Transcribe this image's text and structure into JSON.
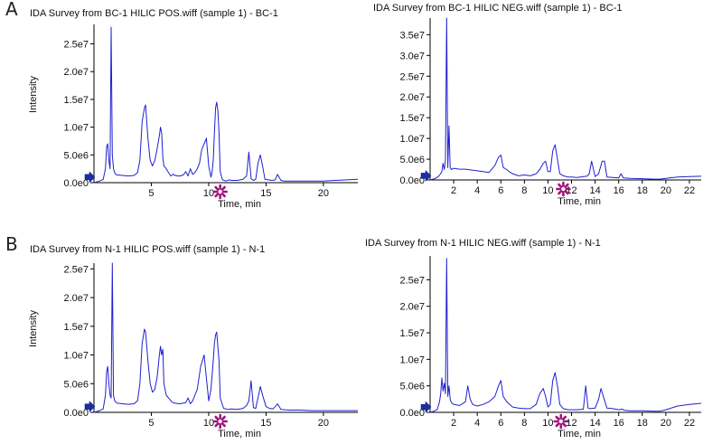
{
  "panels": [
    {
      "label": "A"
    },
    {
      "label": "B"
    }
  ],
  "colors": {
    "trace": "#2020d0",
    "axis": "#000000",
    "arrow": "#1b2fa0",
    "marker": "#a0147c"
  },
  "icons": {
    "start_marker": "blue-arrow-icon",
    "time_marker": "asterisk-icon"
  },
  "chart_data": [
    {
      "type": "line",
      "title": "IDA Survey from BC-1 HILIC POS.wiff (sample 1) - BC-1",
      "xlabel": "Time, min",
      "ylabel": "Intensity",
      "xlim": [
        0,
        23
      ],
      "ylim": [
        0,
        28500000.0
      ],
      "yticks": [
        0,
        5000000,
        10000000,
        15000000,
        20000000,
        25000000
      ],
      "ytick_labels": [
        "0.0e0",
        "5.0e6",
        "1.0e7",
        "1.5e7",
        "2.0e7",
        "2.5e7"
      ],
      "xticks": [
        5,
        10,
        15,
        20
      ],
      "xtick_labels": [
        "5",
        "10",
        "15",
        "20"
      ],
      "marker_time": 11.0,
      "series": [
        {
          "x": [
            0.0,
            0.5,
            0.8,
            1.0,
            1.1,
            1.2,
            1.3,
            1.4,
            1.5,
            1.6,
            1.7,
            1.8,
            1.9,
            2.0,
            2.5,
            3.0,
            3.5,
            3.8,
            4.0,
            4.2,
            4.4,
            4.5,
            4.7,
            4.9,
            5.1,
            5.3,
            5.5,
            5.7,
            5.8,
            5.9,
            6.0,
            6.1,
            6.3,
            6.5,
            6.7,
            6.9,
            7.1,
            7.3,
            7.5,
            7.8,
            8.0,
            8.2,
            8.4,
            8.6,
            8.8,
            9.0,
            9.2,
            9.4,
            9.6,
            9.8,
            10.0,
            10.2,
            10.3,
            10.4,
            10.5,
            10.6,
            10.7,
            10.8,
            10.9,
            11.0,
            11.2,
            11.5,
            11.8,
            12.0,
            12.5,
            13.0,
            13.3,
            13.5,
            13.7,
            13.9,
            14.1,
            14.3,
            14.5,
            14.7,
            14.9,
            15.2,
            15.5,
            15.8,
            16.0,
            16.3,
            16.6,
            17.0,
            18.0,
            19.0,
            20.0,
            21.0,
            22.0,
            23.0
          ],
          "y": [
            0,
            300000,
            600000,
            2500000,
            6500000,
            7000000,
            4000000,
            2500000,
            28000000,
            5000000,
            2500000,
            1800000,
            1500000,
            1400000,
            1300000,
            1200000,
            1300000,
            1800000,
            4000000,
            11000000,
            13500000,
            14000000,
            8000000,
            4000000,
            3000000,
            4000000,
            6000000,
            8500000,
            10000000,
            9000000,
            4500000,
            3000000,
            2500000,
            1800000,
            1200000,
            1500000,
            1300000,
            1200000,
            1200000,
            1400000,
            2000000,
            1200000,
            2500000,
            1500000,
            1800000,
            2500000,
            3500000,
            6000000,
            7000000,
            8000000,
            3000000,
            1000000,
            2000000,
            4000000,
            9000000,
            13500000,
            14500000,
            13000000,
            9000000,
            2000000,
            500000,
            300000,
            500000,
            400000,
            400000,
            600000,
            1200000,
            5500000,
            700000,
            400000,
            600000,
            3500000,
            5000000,
            3000000,
            600000,
            500000,
            400000,
            500000,
            1500000,
            400000,
            300000,
            300000,
            300000,
            300000,
            300000,
            400000,
            500000,
            600000
          ]
        }
      ]
    },
    {
      "type": "line",
      "title": "IDA Survey from BC-1 HILIC NEG.wiff (sample 1) - BC-1",
      "xlabel": "Time, min",
      "ylabel": "",
      "xlim": [
        0,
        23
      ],
      "ylim": [
        0,
        39000000.0
      ],
      "yticks": [
        0,
        5000000,
        10000000,
        15000000,
        20000000,
        25000000,
        30000000,
        35000000
      ],
      "ytick_labels": [
        "0.0e0",
        "5.0e6",
        "1.0e7",
        "1.5e7",
        "2.0e7",
        "2.5e7",
        "3.0e7",
        "3.5e7"
      ],
      "xticks": [
        2,
        4,
        6,
        8,
        10,
        12,
        14,
        16,
        18,
        20,
        22
      ],
      "xtick_labels": [
        "2",
        "4",
        "6",
        "8",
        "10",
        "12",
        "14",
        "16",
        "18",
        "20",
        "22"
      ],
      "marker_time": 11.3,
      "series": [
        {
          "x": [
            0.0,
            0.4,
            0.7,
            0.9,
            1.0,
            1.1,
            1.2,
            1.3,
            1.4,
            1.5,
            1.6,
            1.7,
            1.8,
            2.0,
            2.5,
            3.0,
            3.5,
            4.0,
            4.5,
            5.0,
            5.5,
            5.8,
            6.0,
            6.2,
            6.5,
            6.7,
            7.0,
            7.5,
            8.0,
            8.5,
            9.0,
            9.3,
            9.6,
            9.8,
            10.0,
            10.2,
            10.4,
            10.6,
            10.8,
            11.0,
            11.3,
            11.7,
            12.0,
            12.5,
            13.0,
            13.3,
            13.5,
            13.7,
            14.0,
            14.3,
            14.6,
            14.8,
            15.0,
            15.5,
            16.0,
            16.2,
            16.4,
            17.0,
            18.0,
            19.0,
            19.5,
            20.0,
            21.0,
            22.0,
            23.0
          ],
          "y": [
            0,
            300000,
            800000,
            1500000,
            2000000,
            4000000,
            2500000,
            5000000,
            39000000,
            3000000,
            13000000,
            3000000,
            2500000,
            2800000,
            2600000,
            2600000,
            2400000,
            2200000,
            2000000,
            1800000,
            3500000,
            5500000,
            6000000,
            3000000,
            2500000,
            2000000,
            1500000,
            1000000,
            1200000,
            1000000,
            1500000,
            2500000,
            4000000,
            4500000,
            2000000,
            2000000,
            7000000,
            8500000,
            5000000,
            1500000,
            1000000,
            700000,
            700000,
            600000,
            800000,
            900000,
            1500000,
            4500000,
            800000,
            1500000,
            4500000,
            4500000,
            700000,
            600000,
            500000,
            1500000,
            500000,
            400000,
            300000,
            200000,
            200000,
            400000,
            700000,
            800000,
            900000
          ]
        }
      ]
    },
    {
      "type": "line",
      "title": "IDA Survey from N-1 HILIC POS.wiff (sample 1) - N-1",
      "xlabel": "Time, min",
      "ylabel": "Intensity",
      "xlim": [
        0,
        23
      ],
      "ylim": [
        0,
        26000000.0
      ],
      "yticks": [
        0,
        5000000,
        10000000,
        15000000,
        20000000,
        25000000
      ],
      "ytick_labels": [
        "0.0e0",
        "5.0e6",
        "1.0e7",
        "1.5e7",
        "2.0e7",
        "2.5e7"
      ],
      "xticks": [
        5,
        10,
        15,
        20
      ],
      "xtick_labels": [
        "5",
        "10",
        "15",
        "20"
      ],
      "marker_time": 11.0,
      "series": [
        {
          "x": [
            0.0,
            0.5,
            0.8,
            1.0,
            1.1,
            1.2,
            1.3,
            1.4,
            1.5,
            1.6,
            1.7,
            1.8,
            2.0,
            2.5,
            3.0,
            3.5,
            3.8,
            4.0,
            4.2,
            4.4,
            4.5,
            4.7,
            4.9,
            5.1,
            5.3,
            5.5,
            5.7,
            5.8,
            5.9,
            6.0,
            6.1,
            6.3,
            6.5,
            6.8,
            7.0,
            7.5,
            8.0,
            8.2,
            8.4,
            8.6,
            8.8,
            9.0,
            9.3,
            9.6,
            9.8,
            10.0,
            10.2,
            10.4,
            10.5,
            10.6,
            10.7,
            10.9,
            11.0,
            11.3,
            11.7,
            12.0,
            12.5,
            13.0,
            13.3,
            13.5,
            13.7,
            13.9,
            14.1,
            14.3,
            14.5,
            14.7,
            15.0,
            15.3,
            15.6,
            15.8,
            16.0,
            16.3,
            17.0,
            18.0,
            19.0,
            20.0,
            21.0,
            22.0,
            23.0
          ],
          "y": [
            0,
            300000,
            600000,
            3000000,
            7000000,
            8000000,
            5000000,
            3000000,
            2500000,
            26000000,
            3000000,
            2000000,
            1600000,
            1500000,
            1400000,
            1500000,
            2000000,
            5000000,
            12000000,
            14500000,
            14000000,
            9000000,
            5000000,
            3500000,
            4000000,
            6000000,
            10000000,
            11500000,
            10000000,
            11000000,
            5000000,
            3000000,
            2500000,
            1800000,
            1600000,
            1500000,
            1700000,
            2500000,
            1500000,
            2000000,
            3000000,
            4000000,
            8000000,
            10000000,
            6000000,
            2000000,
            4000000,
            9000000,
            12000000,
            13500000,
            14000000,
            9000000,
            2500000,
            700000,
            500000,
            600000,
            500000,
            700000,
            1200000,
            2000000,
            5500000,
            800000,
            700000,
            2500000,
            4500000,
            3000000,
            1000000,
            700000,
            600000,
            1000000,
            1500000,
            500000,
            400000,
            400000,
            300000,
            300000,
            300000,
            300000,
            300000
          ]
        }
      ]
    },
    {
      "type": "line",
      "title": "IDA Survey from N-1 HILIC NEG.wiff (sample 1) - N-1",
      "xlabel": "Time, min",
      "ylabel": "",
      "xlim": [
        0,
        23
      ],
      "ylim": [
        0,
        29500000.0
      ],
      "yticks": [
        0,
        5000000,
        10000000,
        15000000,
        20000000,
        25000000
      ],
      "ytick_labels": [
        "0.0e0",
        "5.0e6",
        "1.0e7",
        "1.5e7",
        "2.0e7",
        "2.5e7"
      ],
      "xticks": [
        2,
        4,
        6,
        8,
        10,
        12,
        14,
        16,
        18,
        20,
        22
      ],
      "xtick_labels": [
        "2",
        "4",
        "6",
        "8",
        "10",
        "12",
        "14",
        "16",
        "18",
        "20",
        "22"
      ],
      "marker_time": 11.1,
      "series": [
        {
          "x": [
            0.0,
            0.3,
            0.6,
            0.8,
            0.9,
            1.0,
            1.1,
            1.2,
            1.3,
            1.4,
            1.5,
            1.6,
            1.7,
            1.8,
            2.0,
            2.5,
            3.0,
            3.2,
            3.4,
            3.6,
            4.0,
            4.5,
            5.0,
            5.5,
            5.8,
            6.0,
            6.2,
            6.5,
            7.0,
            7.5,
            8.0,
            8.5,
            9.0,
            9.3,
            9.6,
            9.8,
            10.0,
            10.2,
            10.4,
            10.6,
            10.8,
            11.0,
            11.3,
            11.7,
            12.0,
            12.5,
            13.0,
            13.2,
            13.4,
            13.6,
            14.0,
            14.3,
            14.5,
            14.7,
            15.0,
            15.5,
            16.0,
            16.3,
            16.5,
            17.0,
            18.0,
            19.0,
            19.5,
            20.0,
            21.0,
            22.0,
            23.0
          ],
          "y": [
            0,
            200000,
            500000,
            2000000,
            3500000,
            6500000,
            4000000,
            5500000,
            3500000,
            29000000,
            3000000,
            5000000,
            2500000,
            1800000,
            1500000,
            1300000,
            2000000,
            5000000,
            2500000,
            1500000,
            1200000,
            1500000,
            2000000,
            3000000,
            5000000,
            6000000,
            3000000,
            2000000,
            1000000,
            800000,
            700000,
            700000,
            1500000,
            3500000,
            4500000,
            3000000,
            1000000,
            1500000,
            6000000,
            7500000,
            5000000,
            1500000,
            700000,
            500000,
            500000,
            500000,
            600000,
            5000000,
            800000,
            700000,
            800000,
            2500000,
            4500000,
            3000000,
            800000,
            700000,
            500000,
            600000,
            400000,
            300000,
            300000,
            200000,
            200000,
            500000,
            1200000,
            1500000,
            1700000
          ]
        }
      ]
    }
  ]
}
